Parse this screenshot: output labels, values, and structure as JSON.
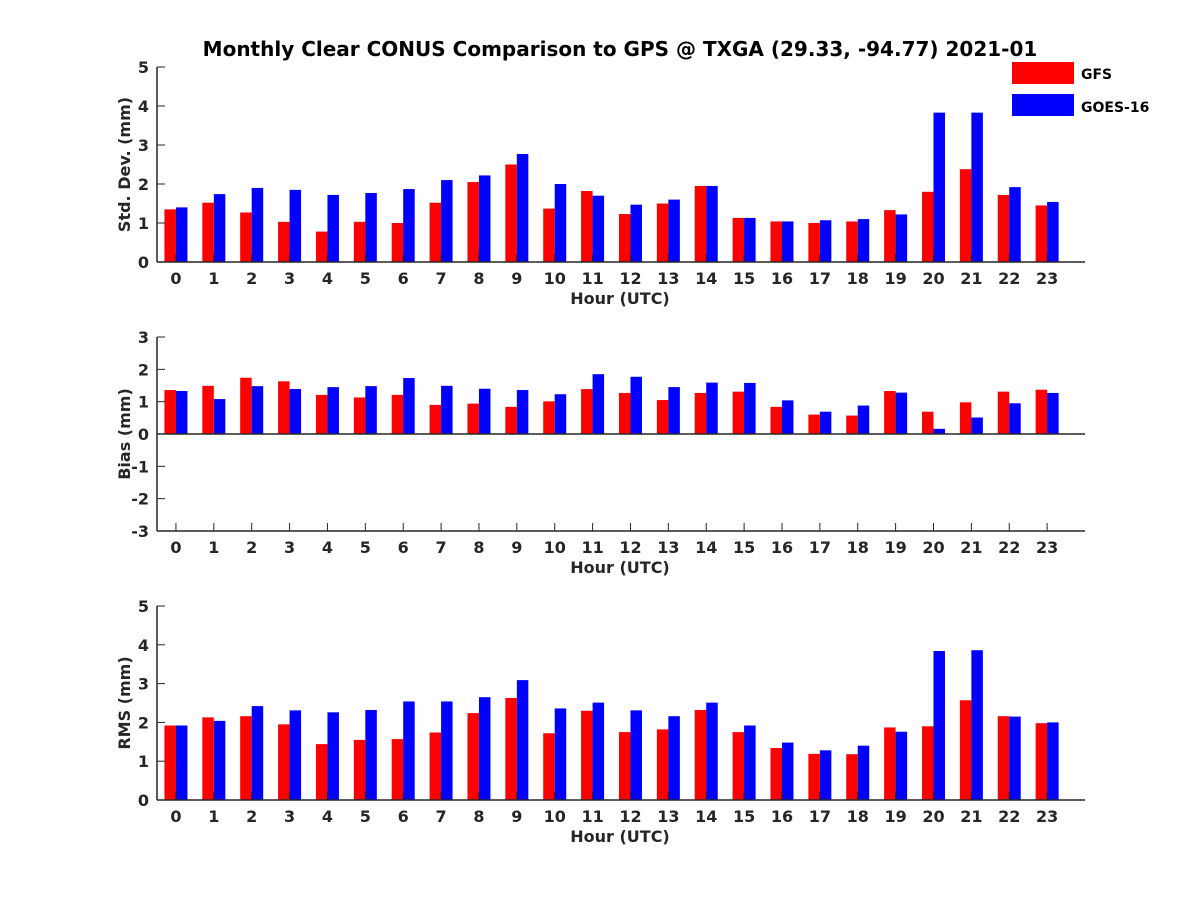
{
  "title": "Monthly Clear CONUS Comparison to GPS @ TXGA (29.33, -94.77) 2021-01",
  "legend": {
    "position": "top-right",
    "items": [
      {
        "label": "GFS",
        "color": "#ff0000"
      },
      {
        "label": "GOES-16",
        "color": "#0000ff"
      }
    ]
  },
  "chart_data": [
    {
      "type": "bar",
      "xlabel": "Hour (UTC)",
      "ylabel": "Std. Dev. (mm)",
      "ylim": [
        0,
        5
      ],
      "yticks": [
        0,
        1,
        2,
        3,
        4,
        5
      ],
      "grid": false,
      "categories": [
        "0",
        "1",
        "2",
        "3",
        "4",
        "5",
        "6",
        "7",
        "8",
        "9",
        "10",
        "11",
        "12",
        "13",
        "14",
        "15",
        "16",
        "17",
        "18",
        "19",
        "20",
        "21",
        "22",
        "23"
      ],
      "series": [
        {
          "name": "GFS",
          "color": "#ff0000",
          "values": [
            1.35,
            1.52,
            1.27,
            1.03,
            0.78,
            1.03,
            1.0,
            1.52,
            2.05,
            2.5,
            1.37,
            1.82,
            1.23,
            1.5,
            1.95,
            1.13,
            1.04,
            1.0,
            1.04,
            1.33,
            1.8,
            2.38,
            1.72,
            1.45
          ]
        },
        {
          "name": "GOES-16",
          "color": "#0000ff",
          "values": [
            1.4,
            1.74,
            1.9,
            1.85,
            1.72,
            1.77,
            1.87,
            2.1,
            2.22,
            2.77,
            2.0,
            1.7,
            1.47,
            1.6,
            1.95,
            1.13,
            1.04,
            1.07,
            1.1,
            1.22,
            3.83,
            3.83,
            1.92,
            1.54
          ]
        }
      ]
    },
    {
      "type": "bar",
      "xlabel": "Hour (UTC)",
      "ylabel": "Bias (mm)",
      "ylim": [
        -3,
        3
      ],
      "yticks": [
        -3,
        -2,
        -1,
        0,
        1,
        2,
        3
      ],
      "grid": false,
      "categories": [
        "0",
        "1",
        "2",
        "3",
        "4",
        "5",
        "6",
        "7",
        "8",
        "9",
        "10",
        "11",
        "12",
        "13",
        "14",
        "15",
        "16",
        "17",
        "18",
        "19",
        "20",
        "21",
        "22",
        "23"
      ],
      "series": [
        {
          "name": "GFS",
          "color": "#ff0000",
          "values": [
            1.36,
            1.49,
            1.74,
            1.63,
            1.21,
            1.13,
            1.21,
            0.9,
            0.94,
            0.84,
            1.01,
            1.39,
            1.27,
            1.05,
            1.27,
            1.31,
            0.84,
            0.6,
            0.57,
            1.33,
            0.69,
            0.98,
            1.31,
            1.37
          ]
        },
        {
          "name": "GOES-16",
          "color": "#0000ff",
          "values": [
            1.33,
            1.08,
            1.48,
            1.39,
            1.45,
            1.48,
            1.73,
            1.49,
            1.4,
            1.36,
            1.23,
            1.85,
            1.77,
            1.45,
            1.59,
            1.58,
            1.04,
            0.69,
            0.88,
            1.28,
            0.16,
            0.51,
            0.95,
            1.27
          ]
        }
      ]
    },
    {
      "type": "bar",
      "xlabel": "Hour (UTC)",
      "ylabel": "RMS (mm)",
      "ylim": [
        0,
        5
      ],
      "yticks": [
        0,
        1,
        2,
        3,
        4,
        5
      ],
      "grid": false,
      "categories": [
        "0",
        "1",
        "2",
        "3",
        "4",
        "5",
        "6",
        "7",
        "8",
        "9",
        "10",
        "11",
        "12",
        "13",
        "14",
        "15",
        "16",
        "17",
        "18",
        "19",
        "20",
        "21",
        "22",
        "23"
      ],
      "series": [
        {
          "name": "GFS",
          "color": "#ff0000",
          "values": [
            1.92,
            2.13,
            2.16,
            1.95,
            1.44,
            1.55,
            1.57,
            1.74,
            2.24,
            2.63,
            1.72,
            2.3,
            1.75,
            1.82,
            2.32,
            1.75,
            1.34,
            1.19,
            1.18,
            1.87,
            1.9,
            2.57,
            2.16,
            1.98
          ]
        },
        {
          "name": "GOES-16",
          "color": "#0000ff",
          "values": [
            1.92,
            2.04,
            2.42,
            2.31,
            2.26,
            2.32,
            2.54,
            2.54,
            2.65,
            3.09,
            2.36,
            2.51,
            2.31,
            2.16,
            2.51,
            1.92,
            1.48,
            1.28,
            1.4,
            1.76,
            3.84,
            3.86,
            2.15,
            2.0
          ]
        }
      ]
    }
  ]
}
